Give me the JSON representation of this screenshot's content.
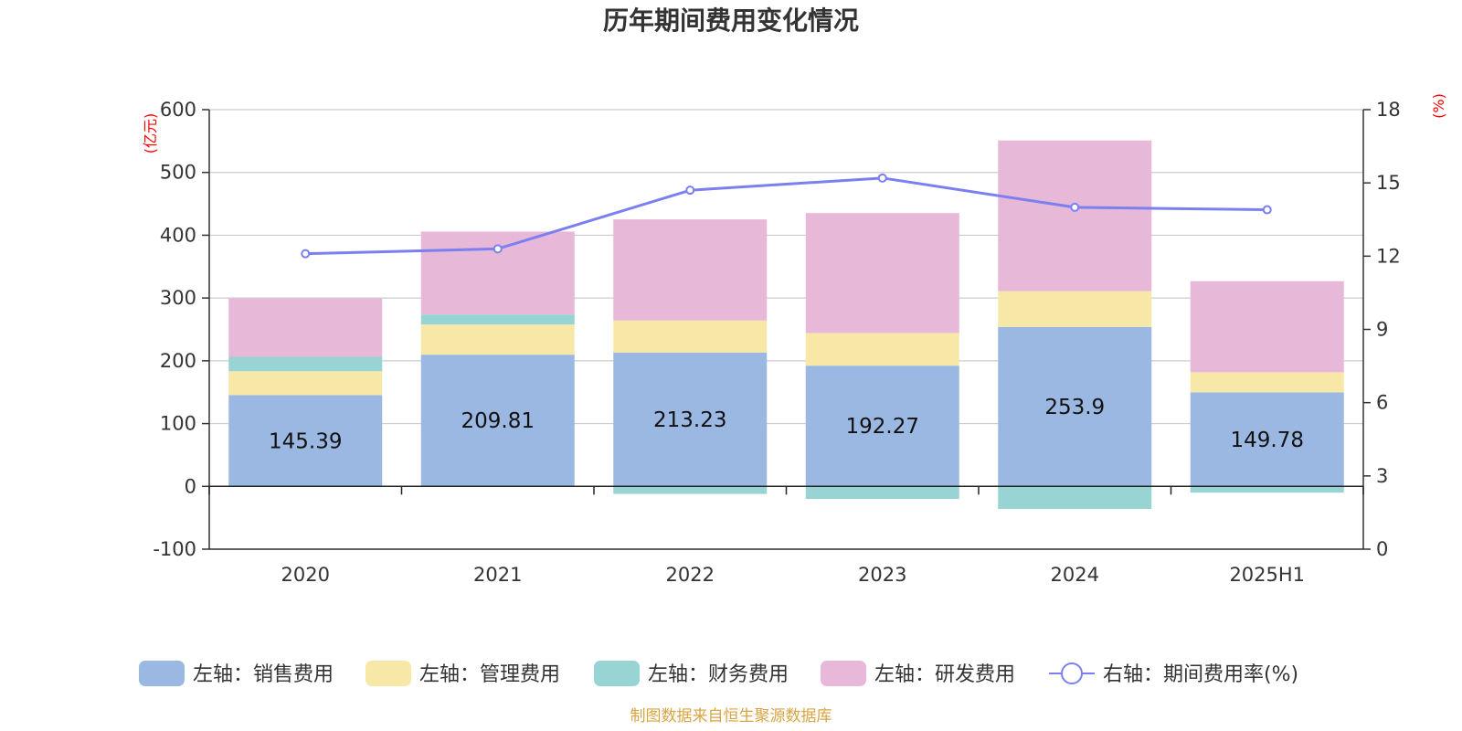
{
  "chart_data": {
    "type": "bar",
    "title": "历年期间费用变化情况",
    "categories": [
      "2020",
      "2021",
      "2022",
      "2023",
      "2024",
      "2025H1"
    ],
    "left_axis": {
      "unit": "(亿元)",
      "ylim": [
        -100,
        600
      ],
      "ticks": [
        600,
        500,
        400,
        300,
        200,
        100,
        0,
        -100
      ]
    },
    "right_axis": {
      "unit": "(%)",
      "ylim": [
        0,
        18
      ],
      "ticks": [
        18,
        15,
        12,
        9,
        6,
        3,
        0
      ]
    },
    "series": [
      {
        "name": "左轴：销售费用",
        "type": "bar",
        "axis": "left",
        "color": "#9bb8e2",
        "values": [
          145.39,
          209.81,
          213.23,
          192.27,
          253.9,
          149.78
        ],
        "labels": [
          "145.39",
          "209.81",
          "213.23",
          "192.27",
          "253.9",
          "149.78"
        ]
      },
      {
        "name": "左轴：管理费用",
        "type": "bar",
        "axis": "left",
        "color": "#f8e8a8",
        "values": [
          38,
          48,
          51,
          52,
          57,
          32
        ]
      },
      {
        "name": "左轴：财务费用",
        "type": "bar",
        "axis": "left",
        "color": "#98d4d4",
        "values": [
          23,
          16,
          -12,
          -20,
          -36,
          -10
        ]
      },
      {
        "name": "左轴：研发费用",
        "type": "bar",
        "axis": "left",
        "color": "#e8b8d8",
        "values": [
          93,
          132,
          161,
          191,
          240,
          145
        ]
      },
      {
        "name": "右轴：期间费用率(%)",
        "type": "line",
        "axis": "right",
        "color": "#7b7ff0",
        "values": [
          12.1,
          12.3,
          14.7,
          15.2,
          14.0,
          13.9
        ]
      }
    ],
    "grid": true,
    "legend_position": "bottom"
  },
  "source_note": "制图数据来自恒生聚源数据库"
}
